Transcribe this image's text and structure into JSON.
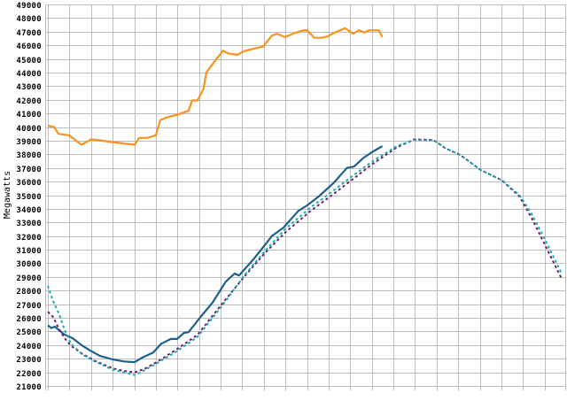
{
  "chart_data": {
    "type": "line",
    "title": "",
    "xlabel": "",
    "ylabel": "Megawatts",
    "xlim": [
      0,
      24
    ],
    "ylim": [
      21000,
      49000
    ],
    "ytick_step": 1000,
    "x_gridlines_every": 1,
    "grid": true,
    "legend": "none",
    "series": [
      {
        "color": "#f7931e",
        "style": "solid",
        "points": [
          [
            0,
            40100
          ],
          [
            0.29,
            40000
          ],
          [
            0.49,
            39500
          ],
          [
            0.98,
            39400
          ],
          [
            1.31,
            39000
          ],
          [
            1.56,
            38700
          ],
          [
            2.01,
            39100
          ],
          [
            2.5,
            39000
          ],
          [
            2.99,
            38900
          ],
          [
            3.48,
            38800
          ],
          [
            4.02,
            38700
          ],
          [
            4.22,
            39200
          ],
          [
            4.59,
            39200
          ],
          [
            5.0,
            39400
          ],
          [
            5.2,
            40500
          ],
          [
            5.49,
            40700
          ],
          [
            5.98,
            40900
          ],
          [
            6.52,
            41200
          ],
          [
            6.68,
            41950
          ],
          [
            6.93,
            41950
          ],
          [
            7.21,
            42800
          ],
          [
            7.34,
            44000
          ],
          [
            7.62,
            44600
          ],
          [
            8.11,
            45600
          ],
          [
            8.36,
            45400
          ],
          [
            8.77,
            45300
          ],
          [
            9.06,
            45550
          ],
          [
            9.39,
            45700
          ],
          [
            9.96,
            45900
          ],
          [
            10.37,
            46700
          ],
          [
            10.61,
            46850
          ],
          [
            10.98,
            46600
          ],
          [
            11.43,
            46900
          ],
          [
            11.84,
            47100
          ],
          [
            12.01,
            47100
          ],
          [
            12.34,
            46550
          ],
          [
            12.66,
            46550
          ],
          [
            12.95,
            46650
          ],
          [
            13.24,
            46900
          ],
          [
            13.77,
            47250
          ],
          [
            14.14,
            46850
          ],
          [
            14.39,
            47100
          ],
          [
            14.67,
            46950
          ],
          [
            14.88,
            47100
          ],
          [
            15.33,
            47100
          ],
          [
            15.49,
            46600
          ]
        ]
      },
      {
        "color": "#1f5f8b",
        "style": "solid",
        "points": [
          [
            0,
            25450
          ],
          [
            0.16,
            25250
          ],
          [
            0.33,
            25350
          ],
          [
            0.74,
            24800
          ],
          [
            1.15,
            24500
          ],
          [
            1.6,
            23950
          ],
          [
            2.01,
            23550
          ],
          [
            2.42,
            23200
          ],
          [
            2.99,
            22950
          ],
          [
            3.52,
            22800
          ],
          [
            4.02,
            22750
          ],
          [
            4.34,
            23050
          ],
          [
            4.88,
            23450
          ],
          [
            5.25,
            24100
          ],
          [
            5.7,
            24450
          ],
          [
            5.98,
            24450
          ],
          [
            6.31,
            24900
          ],
          [
            6.52,
            24950
          ],
          [
            7.09,
            26100
          ],
          [
            7.62,
            27100
          ],
          [
            8.24,
            28650
          ],
          [
            8.65,
            29250
          ],
          [
            8.85,
            29100
          ],
          [
            9.55,
            30350
          ],
          [
            10.08,
            31400
          ],
          [
            10.37,
            32000
          ],
          [
            10.9,
            32600
          ],
          [
            11.6,
            33850
          ],
          [
            12.01,
            34250
          ],
          [
            12.54,
            34900
          ],
          [
            13.24,
            35900
          ],
          [
            13.85,
            37000
          ],
          [
            14.18,
            37100
          ],
          [
            14.59,
            37700
          ],
          [
            15.0,
            38150
          ],
          [
            15.49,
            38600
          ]
        ]
      },
      {
        "color": "#6b1f6f",
        "style": "dashed",
        "points": [
          [
            0,
            26450
          ],
          [
            0.25,
            26050
          ],
          [
            0.53,
            25150
          ],
          [
            0.78,
            24500
          ],
          [
            1.07,
            23950
          ],
          [
            1.6,
            23350
          ],
          [
            2.17,
            22850
          ],
          [
            2.99,
            22300
          ],
          [
            3.52,
            22100
          ],
          [
            4.02,
            22000
          ],
          [
            4.47,
            22250
          ],
          [
            5.04,
            22750
          ],
          [
            5.98,
            23700
          ],
          [
            6.93,
            24750
          ],
          [
            8.03,
            26950
          ],
          [
            9.14,
            29100
          ],
          [
            10.08,
            30800
          ],
          [
            11.02,
            32300
          ],
          [
            12.13,
            33800
          ],
          [
            13.24,
            35100
          ],
          [
            14.06,
            36100
          ],
          [
            15.0,
            37250
          ],
          [
            16.15,
            38500
          ],
          [
            16.97,
            39100
          ],
          [
            17.87,
            39050
          ],
          [
            18.4,
            38450
          ],
          [
            19.1,
            37950
          ],
          [
            20.04,
            36850
          ],
          [
            21.02,
            36100
          ],
          [
            21.84,
            34900
          ],
          [
            22.38,
            33400
          ],
          [
            23.07,
            31200
          ],
          [
            23.81,
            28800
          ]
        ]
      },
      {
        "color": "#1aabb5",
        "style": "dashed",
        "points": [
          [
            0,
            28350
          ],
          [
            0.25,
            27200
          ],
          [
            0.53,
            26250
          ],
          [
            0.78,
            25100
          ],
          [
            1.07,
            24100
          ],
          [
            1.6,
            23300
          ],
          [
            2.17,
            22800
          ],
          [
            2.99,
            22200
          ],
          [
            3.52,
            22000
          ],
          [
            4.02,
            21800
          ],
          [
            4.47,
            22150
          ],
          [
            5.04,
            22650
          ],
          [
            5.98,
            23550
          ],
          [
            6.93,
            24600
          ],
          [
            8.03,
            26800
          ],
          [
            9.14,
            29200
          ],
          [
            10.08,
            30950
          ],
          [
            11.02,
            32550
          ],
          [
            12.13,
            34050
          ],
          [
            13.24,
            35350
          ],
          [
            14.06,
            36350
          ],
          [
            15.0,
            37450
          ],
          [
            16.15,
            38600
          ],
          [
            16.97,
            39050
          ],
          [
            17.87,
            39050
          ],
          [
            18.4,
            38450
          ],
          [
            19.1,
            37950
          ],
          [
            20.04,
            36850
          ],
          [
            21.02,
            36100
          ],
          [
            21.84,
            35000
          ],
          [
            22.38,
            33700
          ],
          [
            23.07,
            31600
          ],
          [
            23.81,
            29200
          ]
        ]
      }
    ]
  }
}
